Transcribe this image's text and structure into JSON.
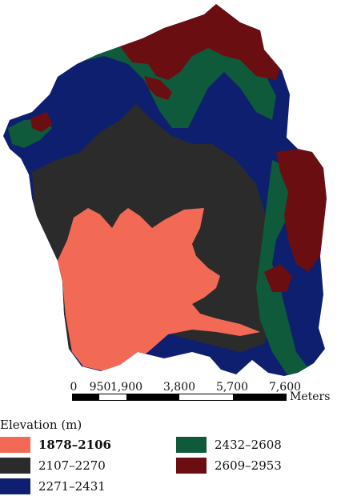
{
  "legend": {
    "title": "Elevation (m)",
    "items": [
      {
        "label": "1878–2106",
        "color": "#f26a55"
      },
      {
        "label": "2107–2270",
        "color": "#2b2b2b"
      },
      {
        "label": "2271–2431",
        "color": "#0d1f6e"
      },
      {
        "label": "2432–2608",
        "color": "#0e5a3a"
      },
      {
        "label": "2609–2953",
        "color": "#6b0e12"
      }
    ]
  },
  "scale": {
    "labels": [
      "0",
      "950",
      "1,900",
      "3,800",
      "5,700",
      "7,600"
    ],
    "values": [
      0,
      950,
      1900,
      3800,
      5700,
      7600
    ],
    "unit": "Meters"
  }
}
